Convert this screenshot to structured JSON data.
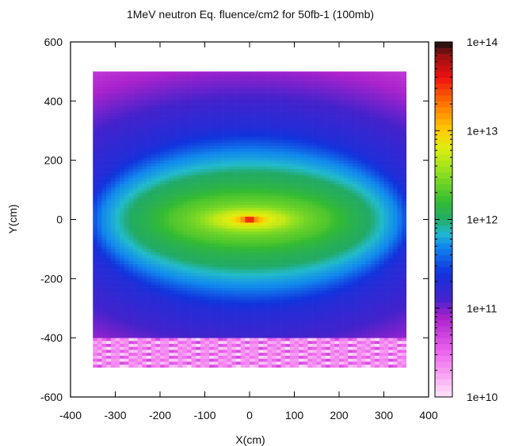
{
  "chart_data": {
    "type": "heatmap",
    "title": "1MeV neutron Eq. fluence/cm2 for 50fb-1  (100mb)",
    "xlabel": "X(cm)",
    "ylabel": "Y(cm)",
    "xlim": [
      -400,
      400
    ],
    "ylim": [
      -600,
      600
    ],
    "x_ticks": [
      -400,
      -300,
      -200,
      -100,
      0,
      100,
      200,
      300,
      400
    ],
    "y_ticks": [
      -600,
      -400,
      -200,
      0,
      200,
      400,
      600
    ],
    "x_tick_labels": [
      "-400",
      "-300",
      "-200",
      "-100",
      "0",
      "100",
      "200",
      "300",
      "400"
    ],
    "y_tick_labels": [
      "-600",
      "-400",
      "-200",
      "0",
      "200",
      "400",
      "600"
    ],
    "data_extent": {
      "x": [
        -350,
        350
      ],
      "y": [
        -500,
        500
      ]
    },
    "grid_step_cm": 10,
    "z_scale": "log",
    "zlim": [
      10000000000.0,
      100000000000000.0
    ],
    "colorbar_tick_values": [
      10000000000.0,
      100000000000.0,
      1000000000000.0,
      10000000000000.0,
      100000000000000.0
    ],
    "colorbar_tick_labels": [
      "1e+10",
      "1e+11",
      "1e+12",
      "1e+13",
      "1e+14"
    ],
    "colormap": [
      {
        "log10": 10.0,
        "color": "#ffe4f8"
      },
      {
        "log10": 10.5,
        "color": "#ee66ee"
      },
      {
        "log10": 10.9,
        "color": "#aa22cc"
      },
      {
        "log10": 11.1,
        "color": "#4422cc"
      },
      {
        "log10": 11.4,
        "color": "#1133dd"
      },
      {
        "log10": 11.7,
        "color": "#1188ee"
      },
      {
        "log10": 11.85,
        "color": "#22bbcc"
      },
      {
        "log10": 12.0,
        "color": "#22aa66"
      },
      {
        "log10": 12.2,
        "color": "#33bb33"
      },
      {
        "log10": 12.5,
        "color": "#88dd22"
      },
      {
        "log10": 12.8,
        "color": "#ddee11"
      },
      {
        "log10": 13.0,
        "color": "#ffcc00"
      },
      {
        "log10": 13.3,
        "color": "#ff7700"
      },
      {
        "log10": 13.6,
        "color": "#ee1111"
      },
      {
        "log10": 13.85,
        "color": "#991111"
      },
      {
        "log10": 14.0,
        "color": "#111111"
      }
    ],
    "fluence_profile": {
      "peak_at": [
        0,
        0
      ],
      "peak_value": 100000000000000.0,
      "contours": [
        {
          "value": 30000000000000.0,
          "half_width_x": 12,
          "half_width_y": 6
        },
        {
          "value": 10000000000000.0,
          "half_width_x": 30,
          "half_width_y": 12
        },
        {
          "value": 5000000000000.0,
          "half_width_x": 80,
          "half_width_y": 30
        },
        {
          "value": 2000000000000.0,
          "half_width_x": 175,
          "half_width_y": 80
        },
        {
          "value": 1000000000000.0,
          "half_width_x": 270,
          "half_width_y": 160
        },
        {
          "value": 500000000000.0,
          "half_width_x": 330,
          "half_width_y": 230
        },
        {
          "value": 200000000000.0,
          "half_width_x": 370,
          "half_width_y": 310
        }
      ],
      "region_y_below_minus_400": {
        "value_range": [
          10000000000.0,
          50000000000.0
        ]
      }
    }
  }
}
